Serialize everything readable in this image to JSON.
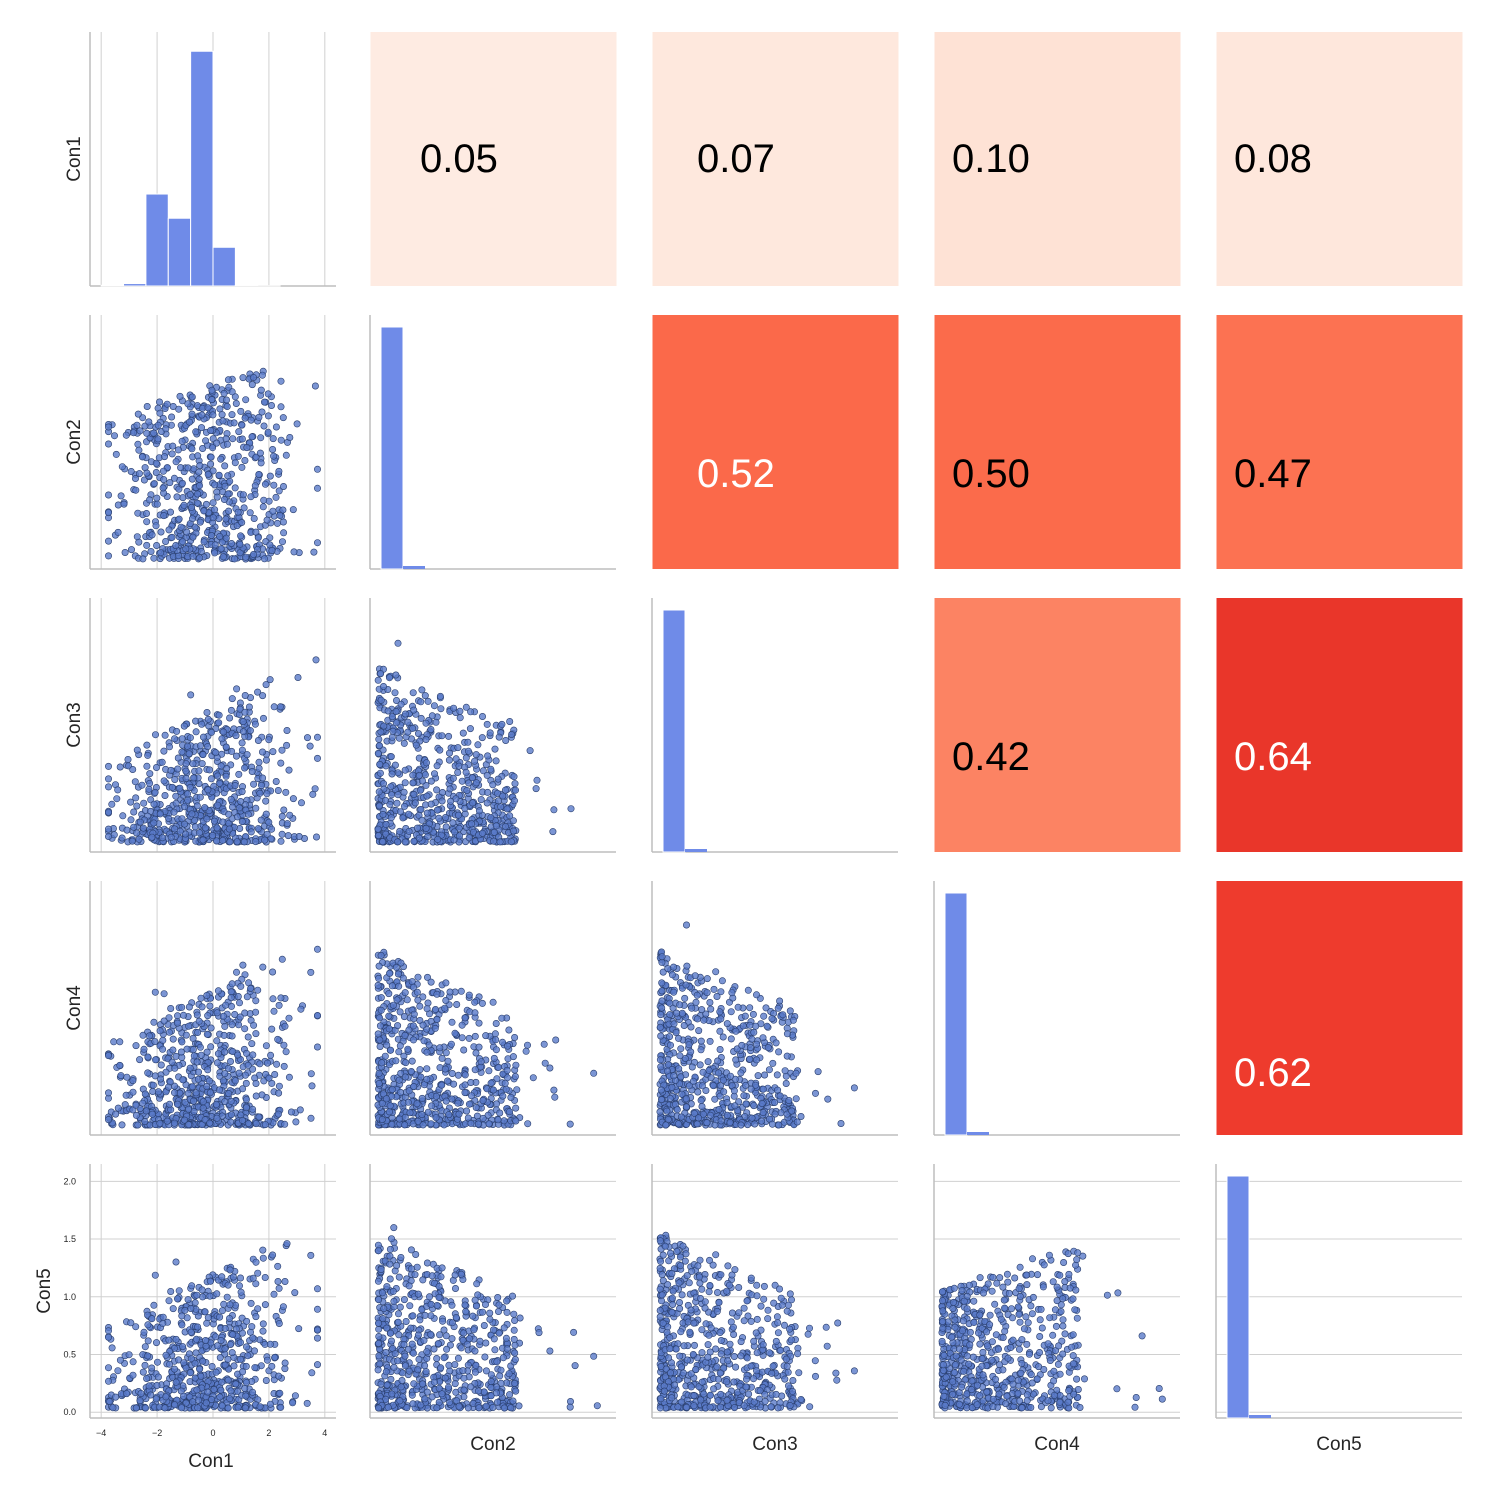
{
  "chart_data": {
    "type": "scatter",
    "variables": [
      "Con1",
      "Con2",
      "Con3",
      "Con4",
      "Con5"
    ],
    "colors": {
      "hist": "#6f8be8",
      "point_fill": "#5a7bc9",
      "point_edge": "#2a3f6e",
      "grid": "#d0d0d0",
      "axis": "#bdbdbd"
    },
    "correlations": [
      {
        "row": 0,
        "col": 1,
        "value": "0.05",
        "color": "#feebe2",
        "text_color": "#000000"
      },
      {
        "row": 0,
        "col": 2,
        "value": "0.07",
        "color": "#fee8dd",
        "text_color": "#000000"
      },
      {
        "row": 0,
        "col": 3,
        "value": "0.10",
        "color": "#fee2d5",
        "text_color": "#000000"
      },
      {
        "row": 0,
        "col": 4,
        "value": "0.08",
        "color": "#fee7dc",
        "text_color": "#000000"
      },
      {
        "row": 1,
        "col": 2,
        "value": "0.52",
        "color": "#fb694a",
        "text_color": "#ffffff"
      },
      {
        "row": 1,
        "col": 3,
        "value": "0.50",
        "color": "#fb6b4b",
        "text_color": "#000000"
      },
      {
        "row": 1,
        "col": 4,
        "value": "0.47",
        "color": "#fc7252",
        "text_color": "#000000"
      },
      {
        "row": 2,
        "col": 3,
        "value": "0.42",
        "color": "#fc8363",
        "text_color": "#000000"
      },
      {
        "row": 2,
        "col": 4,
        "value": "0.64",
        "color": "#e9362a",
        "text_color": "#ffffff"
      },
      {
        "row": 3,
        "col": 4,
        "value": "0.62",
        "color": "#ee3b2d",
        "text_color": "#ffffff"
      }
    ],
    "con1_histogram": {
      "bin_edges": [
        -4,
        -3.2,
        -2.4,
        -1.6,
        -0.8,
        0,
        0.8,
        1.6,
        2.4,
        3.2,
        4
      ],
      "counts": [
        0.3,
        1,
        38,
        28,
        97,
        16,
        0.2,
        0.1,
        0,
        0
      ]
    },
    "x_axis": {
      "variable": "Con1",
      "range": [
        -4.4,
        4.4
      ],
      "ticks": [
        -4,
        -2,
        0,
        2,
        4
      ],
      "tick_labels": [
        "−4",
        "−2",
        "0",
        "2",
        "4"
      ]
    },
    "y_axis": {
      "variable": "Con5",
      "range": [
        -0.05,
        2.15
      ],
      "ticks": [
        0.0,
        0.5,
        1.0,
        1.5,
        2.0
      ],
      "tick_labels": [
        "0.0",
        "0.5",
        "1.0",
        "1.5",
        "2.0"
      ]
    },
    "grid": true,
    "legend": "none"
  }
}
